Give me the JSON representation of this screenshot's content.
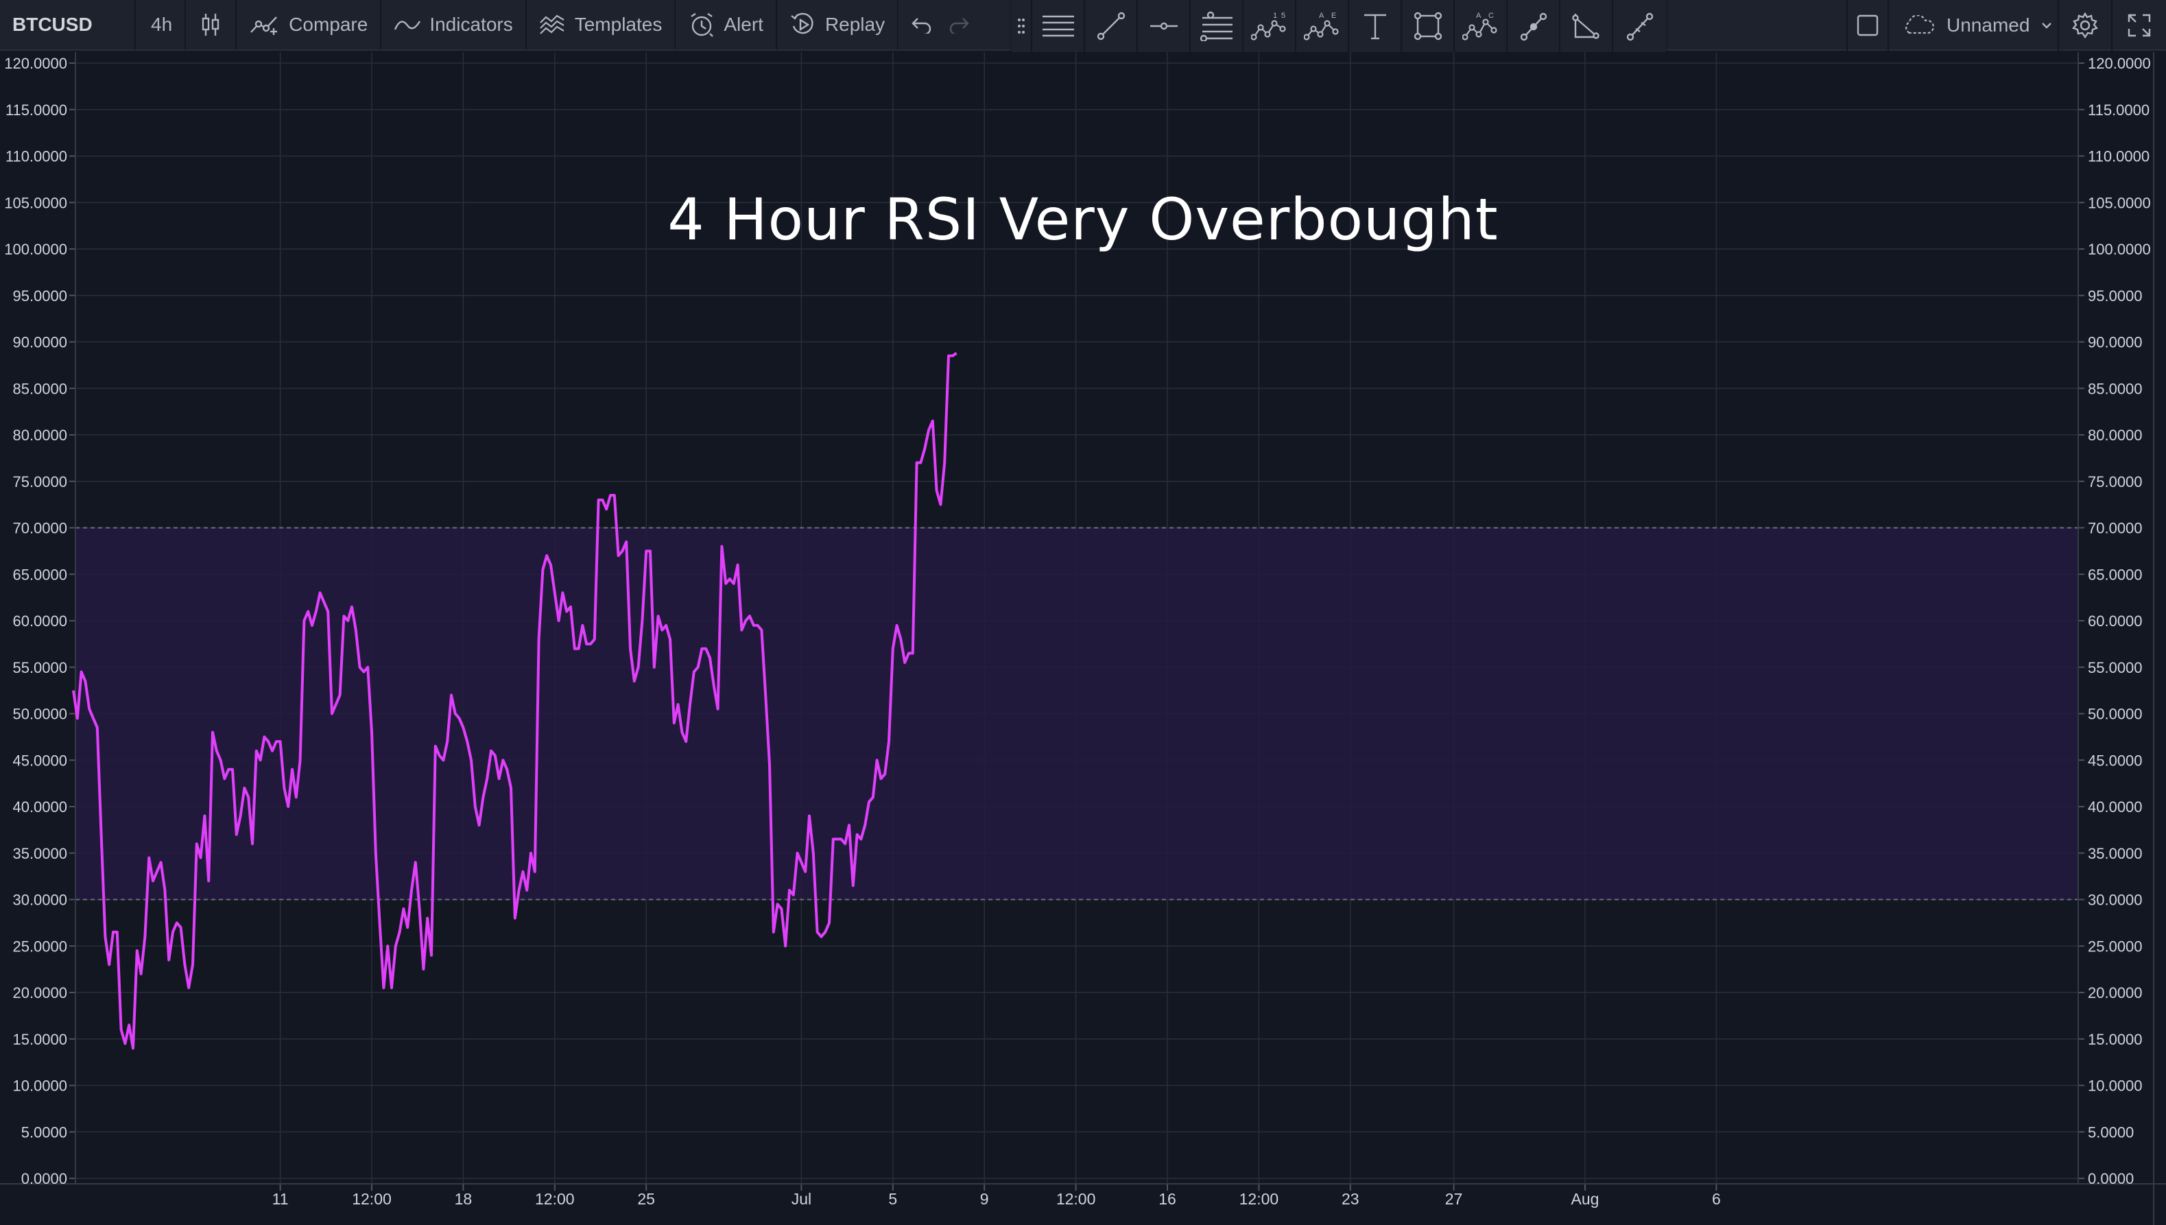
{
  "toolbar": {
    "symbol": "BTCUSD",
    "interval": "4h",
    "chart_type_icon": "candlestick-icon",
    "compare_label": "Compare",
    "indicators_label": "Indicators",
    "templates_label": "Templates",
    "alert_label": "Alert",
    "replay_label": "Replay",
    "layout_name": "Unnamed"
  },
  "drawing_tools": [
    "horizontal-lines-icon",
    "trend-line-icon",
    "horizontal-ray-icon",
    "fib-retracement-icon",
    "xabcd-pattern-icon",
    "abcd-pattern-icon",
    "text-cursor-icon",
    "rectangle-icon",
    "elliott-wave-icon",
    "brush-icon",
    "angle-icon",
    "ruler-icon"
  ],
  "colors": {
    "background": "#131722",
    "grid": "#2a2e39",
    "rsi_line": "#e040fb",
    "band_fill": "#241a40",
    "band_line": "#6a6d78",
    "title": "#ffffff"
  },
  "chart_data": {
    "type": "line",
    "title": "4 Hour RSI Very Overbought",
    "ylim": [
      0,
      120
    ],
    "y_ticks": [
      "120.0000",
      "115.0000",
      "110.0000",
      "105.0000",
      "100.0000",
      "95.0000",
      "90.0000",
      "85.0000",
      "80.0000",
      "75.0000",
      "70.0000",
      "65.0000",
      "60.0000",
      "55.0000",
      "50.0000",
      "45.0000",
      "40.0000",
      "35.0000",
      "30.0000",
      "25.0000",
      "20.0000",
      "15.0000",
      "10.0000",
      "5.0000",
      "0.0000"
    ],
    "x_ticks": [
      "11",
      "12:00",
      "18",
      "12:00",
      "25",
      "Jul",
      "5",
      "9",
      "12:00",
      "16",
      "12:00",
      "23",
      "27",
      "Aug",
      "6"
    ],
    "x_tick_bars": [
      52,
      75,
      98,
      121,
      144,
      183,
      206,
      229,
      252,
      275,
      298,
      321,
      347,
      380,
      413
    ],
    "bands": {
      "overbought": 70,
      "oversold": 30
    },
    "grid": true,
    "legend": "none",
    "series": [
      {
        "values": [
          52.5,
          49.5,
          54.5,
          53.5,
          50.5,
          49.5,
          48.5,
          37,
          26,
          23,
          26.5,
          26.5,
          16,
          14.5,
          16.5,
          14,
          24.5,
          22,
          26,
          34.5,
          32,
          33,
          34,
          31,
          23.5,
          26.5,
          27.5,
          27,
          23,
          20.5,
          23,
          36,
          34.5,
          39,
          32,
          48,
          46,
          45,
          43,
          44,
          44,
          37,
          39,
          42,
          41,
          36,
          46,
          45,
          47.5,
          47,
          46,
          47,
          47,
          42,
          40,
          44,
          41,
          45,
          60,
          61,
          59.5,
          61,
          63,
          62,
          61,
          50,
          51,
          52,
          60.5,
          60,
          61.5,
          59,
          55,
          54.5,
          55,
          48,
          35,
          27.5,
          20.5,
          25,
          20.5,
          25,
          26.5,
          29,
          27,
          31,
          34,
          29,
          22.5,
          28,
          24,
          46.5,
          45.5,
          45,
          47,
          52,
          50,
          49.5,
          48.5,
          47,
          45,
          40,
          38,
          41,
          43,
          46,
          45.5,
          43,
          45,
          44,
          42,
          28,
          31,
          33,
          31,
          35,
          33,
          58,
          65.5,
          67,
          66,
          63,
          60,
          63,
          61,
          61.5,
          57,
          57,
          59.5,
          57.5,
          57.5,
          58,
          73,
          73,
          72,
          73.5,
          73.5,
          67,
          67.5,
          68.5,
          57,
          53.5,
          55,
          60,
          67.5,
          67.5,
          55,
          60.5,
          59,
          59.5,
          58,
          49,
          51,
          48,
          47,
          51,
          54.5,
          55,
          57,
          57,
          56,
          53,
          50.5,
          68,
          64,
          64.5,
          64,
          66,
          59,
          60,
          60.5,
          59.5,
          59.5,
          59,
          52,
          44.5,
          26.5,
          29.5,
          29,
          25,
          31,
          30.5,
          35,
          34,
          33,
          39,
          35,
          26.5,
          26,
          26.5,
          27.5,
          36.5,
          36.5,
          36.5,
          36,
          38,
          31.5,
          37,
          36.5,
          38,
          40.5,
          41,
          45,
          43,
          43.5,
          47,
          57,
          59.5,
          58,
          55.5,
          56.5,
          56.5,
          77,
          77,
          78.5,
          80.5,
          81.5,
          74,
          72.5,
          77,
          88.5,
          88.5,
          88.8
        ]
      }
    ]
  }
}
